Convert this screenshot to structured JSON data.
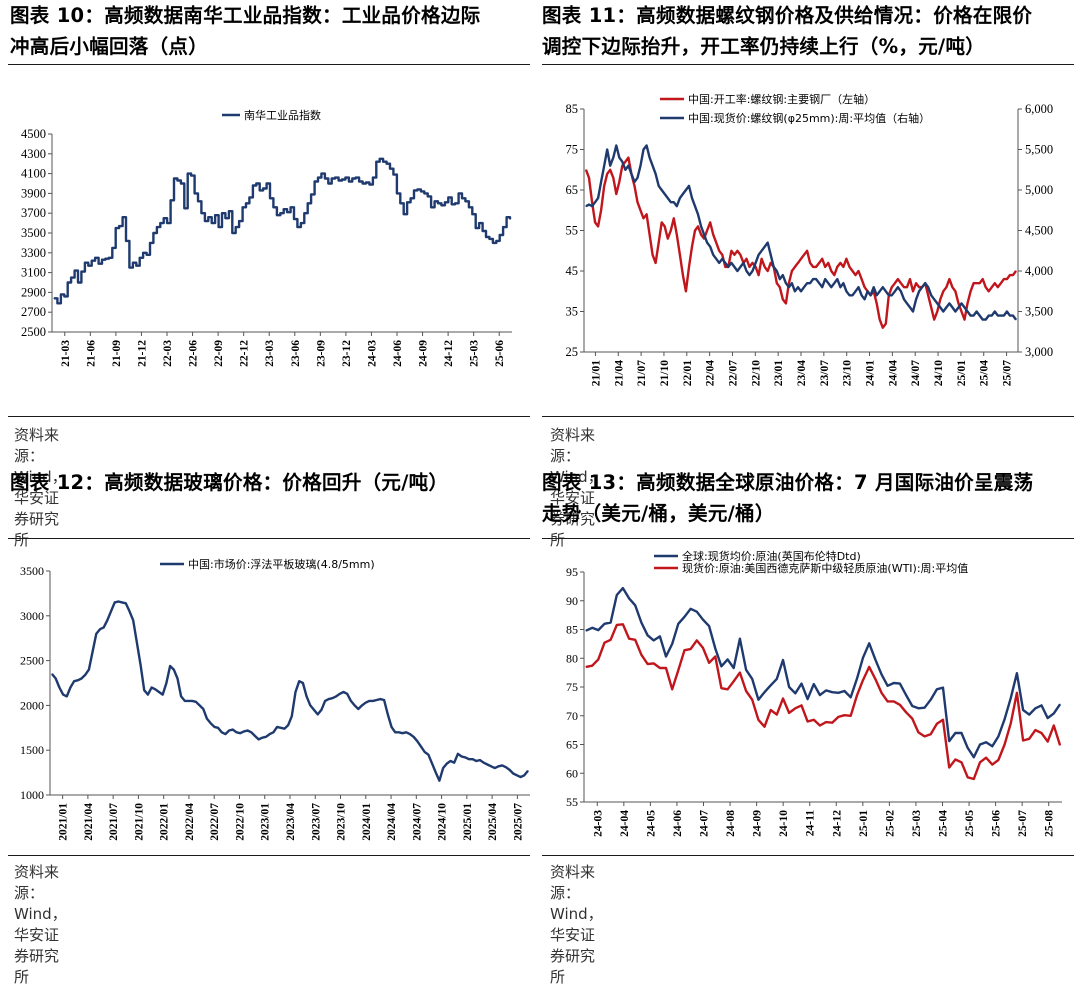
{
  "colors": {
    "navy": "#1f3a6e",
    "red": "#c0161c"
  },
  "panels": [
    {
      "id": "p10",
      "title_lines": [
        "图表 10：高频数据南华工业品指数：工业品价格边际",
        "冲高后小幅回落（点）"
      ],
      "source": "资料来源：Wind，华安证券研究所"
    },
    {
      "id": "p11",
      "title_lines": [
        "图表 11：高频数据螺纹钢价格及供给情况：价格在限价",
        "调控下边际抬升，开工率仍持续上行（%，元/吨）"
      ],
      "source": "资料来源：Wind，华安证券研究所"
    },
    {
      "id": "p12",
      "title_lines": [
        "图表 12：高频数据玻璃价格：价格回升（元/吨）"
      ],
      "source": "资料来源：Wind，华安证券研究所"
    },
    {
      "id": "p13",
      "title_lines": [
        "图表 13：高频数据全球原油价格：7 月国际油价呈震荡",
        "走势（美元/桶，美元/桶）"
      ],
      "source": "资料来源：Wind，华安证券研究所"
    }
  ],
  "chart_data": [
    {
      "id": "c10",
      "type": "line",
      "ylim": [
        2500,
        4500
      ],
      "yticks": [
        "2500",
        "2700",
        "2900",
        "3100",
        "3300",
        "3500",
        "3700",
        "3900",
        "4100",
        "4300",
        "4500"
      ],
      "xticks": [
        "21-03",
        "21-06",
        "21-09",
        "21-12",
        "22-03",
        "22-06",
        "22-09",
        "22-12",
        "23-03",
        "23-06",
        "23-09",
        "23-12",
        "24-03",
        "24-06",
        "24-09",
        "24-12",
        "25-03",
        "25-06"
      ],
      "series": [
        {
          "name": "南华工业品指数",
          "color": "#1f3a6e",
          "axis": "left",
          "values": [
            2840,
            2790,
            2880,
            2860,
            3000,
            3050,
            3120,
            3000,
            3110,
            3200,
            3170,
            3220,
            3250,
            3190,
            3230,
            3240,
            3250,
            3350,
            3550,
            3570,
            3660,
            3420,
            3150,
            3200,
            3170,
            3250,
            3300,
            3280,
            3400,
            3500,
            3560,
            3600,
            3650,
            3600,
            3830,
            4050,
            4030,
            4000,
            3750,
            4100,
            4080,
            3900,
            3820,
            3700,
            3620,
            3660,
            3600,
            3680,
            3560,
            3700,
            3650,
            3720,
            3500,
            3560,
            3620,
            3760,
            3800,
            3860,
            3980,
            4000,
            3930,
            3950,
            4000,
            3850,
            3760,
            3680,
            3700,
            3740,
            3710,
            3760,
            3640,
            3560,
            3600,
            3700,
            3800,
            3890,
            4020,
            4060,
            4100,
            4050,
            4000,
            4050,
            4060,
            4030,
            4040,
            4060,
            4020,
            4050,
            4060,
            4020,
            4000,
            4010,
            3990,
            4060,
            4220,
            4250,
            4220,
            4200,
            4150,
            4090,
            3900,
            3800,
            3690,
            3810,
            3850,
            3930,
            3940,
            3920,
            3900,
            3870,
            3760,
            3820,
            3800,
            3780,
            3810,
            3860,
            3790,
            3800,
            3900,
            3850,
            3820,
            3760,
            3690,
            3550,
            3600,
            3520,
            3460,
            3440,
            3400,
            3420,
            3480,
            3560,
            3660,
            3640
          ]
        }
      ]
    },
    {
      "id": "c11",
      "type": "line",
      "ylim": [
        25,
        85
      ],
      "y2lim": [
        3000,
        6000
      ],
      "yticks": [
        "25",
        "35",
        "45",
        "55",
        "65",
        "75",
        "85"
      ],
      "y2ticks": [
        "3,000",
        "3,500",
        "4,000",
        "4,500",
        "5,000",
        "5,500",
        "6,000"
      ],
      "xticks": [
        "21/01",
        "21/04",
        "21/07",
        "21/10",
        "22/01",
        "22/04",
        "22/07",
        "22/10",
        "23/01",
        "23/04",
        "23/07",
        "23/10",
        "24/01",
        "24/04",
        "24/07",
        "24/10",
        "25/01",
        "25/04",
        "25/07"
      ],
      "series": [
        {
          "name": "中国:开工率:螺纹钢:主要钢厂（左轴）",
          "color": "#c0161c",
          "axis": "left",
          "values": [
            70,
            68,
            62,
            57,
            56,
            60,
            66,
            69,
            70,
            68,
            64,
            67,
            71,
            72,
            73,
            69,
            66,
            62,
            60,
            58,
            59,
            54,
            49,
            47,
            52,
            57,
            56,
            53,
            55,
            58,
            54,
            49,
            44,
            40,
            46,
            51,
            55,
            56,
            54,
            53,
            55,
            57,
            54,
            52,
            50,
            49,
            46,
            46,
            50,
            49,
            50,
            49,
            47,
            48,
            46,
            47,
            46,
            44,
            48,
            46,
            45,
            47,
            46,
            42,
            41,
            38,
            37,
            42,
            45,
            46,
            47,
            48,
            49,
            50,
            47,
            46,
            46,
            47,
            48,
            46,
            47,
            45,
            44,
            46,
            47,
            46,
            48,
            46,
            45,
            44,
            45,
            43,
            41,
            40,
            39,
            40,
            37,
            33,
            31,
            32,
            39,
            41,
            42,
            43,
            42,
            41,
            41,
            43,
            40,
            42,
            41,
            41,
            42,
            39,
            36,
            33,
            35,
            38,
            40,
            41,
            43,
            41,
            40,
            37,
            35,
            33,
            37,
            40,
            42,
            42,
            42,
            43,
            41,
            40,
            41,
            42,
            41,
            42,
            43,
            43,
            44,
            44,
            45
          ]
        },
        {
          "name": "中国:现货价:螺纹钢(φ25mm):周:平均值（右轴）",
          "color": "#1f3a6e",
          "axis": "right",
          "values": [
            4800,
            4820,
            4800,
            4850,
            4900,
            5100,
            5300,
            5500,
            5300,
            5400,
            5550,
            5400,
            5350,
            5250,
            5300,
            5200,
            5100,
            5150,
            5300,
            5500,
            5550,
            5400,
            5300,
            5200,
            5050,
            5000,
            4950,
            4900,
            4850,
            4850,
            4800,
            4900,
            4950,
            5000,
            5050,
            4900,
            4800,
            4700,
            4550,
            4450,
            4350,
            4300,
            4200,
            4150,
            4100,
            4150,
            4100,
            4050,
            4100,
            4050,
            4000,
            4050,
            4100,
            4000,
            3950,
            4000,
            4100,
            4200,
            4250,
            4300,
            4350,
            4200,
            4050,
            4000,
            3900,
            3950,
            3850,
            3800,
            3850,
            3750,
            3800,
            3750,
            3800,
            3850,
            3850,
            3900,
            3900,
            3850,
            3800,
            3900,
            3850,
            3800,
            3850,
            3900,
            3800,
            3850,
            3750,
            3700,
            3700,
            3750,
            3800,
            3700,
            3650,
            3750,
            3700,
            3800,
            3700,
            3750,
            3800,
            3750,
            3700,
            3700,
            3750,
            3800,
            3750,
            3650,
            3600,
            3550,
            3500,
            3650,
            3750,
            3800,
            3850,
            3800,
            3700,
            3650,
            3600,
            3550,
            3500,
            3550,
            3600,
            3550,
            3500,
            3550,
            3600,
            3550,
            3500,
            3450,
            3450,
            3500,
            3450,
            3400,
            3400,
            3450,
            3450,
            3500,
            3450,
            3450,
            3450,
            3500,
            3450,
            3450,
            3400
          ]
        }
      ]
    },
    {
      "id": "c12",
      "type": "line",
      "ylim": [
        1000,
        3500
      ],
      "yticks": [
        "1000",
        "1500",
        "2000",
        "2500",
        "3000",
        "3500"
      ],
      "xticks": [
        "2021/01",
        "2021/04",
        "2021/07",
        "2021/10",
        "2022/01",
        "2022/04",
        "2022/07",
        "2022/10",
        "2023/01",
        "2023/04",
        "2023/07",
        "2023/10",
        "2024/01",
        "2024/04",
        "2024/07",
        "2024/10",
        "2025/01",
        "2025/04",
        "2025/07"
      ],
      "series": [
        {
          "name": "中国:市场价:浮法平板玻璃(4.8/5mm)",
          "color": "#1f3a6e",
          "axis": "left",
          "values": [
            2350,
            2300,
            2200,
            2120,
            2100,
            2200,
            2270,
            2280,
            2300,
            2340,
            2400,
            2600,
            2800,
            2850,
            2870,
            2950,
            3050,
            3150,
            3160,
            3150,
            3140,
            3050,
            2950,
            2700,
            2450,
            2170,
            2120,
            2200,
            2180,
            2150,
            2120,
            2250,
            2440,
            2400,
            2300,
            2100,
            2050,
            2050,
            2050,
            2040,
            2000,
            1960,
            1850,
            1800,
            1760,
            1750,
            1700,
            1680,
            1720,
            1730,
            1700,
            1690,
            1710,
            1720,
            1700,
            1660,
            1620,
            1640,
            1650,
            1680,
            1700,
            1760,
            1750,
            1740,
            1780,
            1880,
            2150,
            2270,
            2250,
            2100,
            2000,
            1950,
            1900,
            1950,
            2050,
            2070,
            2080,
            2100,
            2130,
            2150,
            2130,
            2050,
            2000,
            1960,
            2000,
            2030,
            2050,
            2050,
            2060,
            2070,
            2060,
            1900,
            1760,
            1700,
            1700,
            1690,
            1700,
            1680,
            1650,
            1600,
            1540,
            1480,
            1450,
            1350,
            1250,
            1160,
            1300,
            1350,
            1380,
            1360,
            1460,
            1430,
            1420,
            1400,
            1400,
            1380,
            1390,
            1360,
            1340,
            1320,
            1300,
            1320,
            1330,
            1310,
            1280,
            1240,
            1220,
            1200,
            1220,
            1270
          ]
        }
      ]
    },
    {
      "id": "c13",
      "type": "line",
      "ylim": [
        55,
        95
      ],
      "yticks": [
        "55",
        "60",
        "65",
        "70",
        "75",
        "80",
        "85",
        "90",
        "95"
      ],
      "xticks": [
        "24-03",
        "24-04",
        "24-05",
        "24-06",
        "24-07",
        "24-08",
        "24-09",
        "24-10",
        "24-11",
        "24-12",
        "25-01",
        "25-02",
        "25-03",
        "25-04",
        "25-05",
        "25-06",
        "25-07",
        "25-08"
      ],
      "series": [
        {
          "name": "全球:现货均价:原油(英国布伦特Dtd)",
          "color": "#1f3a6e",
          "axis": "left",
          "values": [
            84.8,
            85.3,
            84.9,
            86.0,
            86.2,
            91.0,
            92.2,
            90.4,
            89.2,
            86.2,
            84.0,
            83.1,
            83.8,
            80.3,
            82.5,
            86.0,
            87.2,
            88.6,
            88.1,
            86.7,
            85.6,
            81.7,
            78.6,
            79.8,
            78.3,
            83.4,
            78.0,
            76.4,
            72.8,
            74.1,
            75.3,
            76.4,
            79.7,
            75.0,
            73.9,
            75.6,
            72.9,
            75.5,
            73.6,
            74.4,
            74.1,
            74.0,
            74.3,
            73.2,
            76.4,
            80.1,
            82.6,
            79.8,
            77.2,
            75.2,
            75.7,
            75.6,
            73.6,
            71.7,
            71.3,
            71.4,
            72.8,
            74.6,
            74.9,
            65.6,
            67.0,
            67.0,
            64.4,
            62.8,
            65.0,
            65.4,
            64.7,
            66.4,
            69.4,
            73.1,
            77.4,
            71.0,
            70.2,
            71.3,
            71.8,
            69.6,
            70.4,
            72.0
          ]
        },
        {
          "name": "现货价:原油:美国西德克萨斯中级轻质原油(WTI):周:平均值",
          "color": "#c0161c",
          "axis": "left",
          "values": [
            78.5,
            78.7,
            79.8,
            82.7,
            83.2,
            85.8,
            85.9,
            83.4,
            83.2,
            80.6,
            79.0,
            79.1,
            78.3,
            78.3,
            74.6,
            77.9,
            81.4,
            81.6,
            83.1,
            81.8,
            79.2,
            80.3,
            74.8,
            74.6,
            76.0,
            77.5,
            74.3,
            72.8,
            69.3,
            68.1,
            71.0,
            70.2,
            73.0,
            70.5,
            71.3,
            71.8,
            69.0,
            69.3,
            68.3,
            68.9,
            68.8,
            69.8,
            70.1,
            70.0,
            73.5,
            76.2,
            78.5,
            76.4,
            74.0,
            72.5,
            72.5,
            71.9,
            70.6,
            69.5,
            67.1,
            66.4,
            66.8,
            68.6,
            69.3,
            61.0,
            62.4,
            61.9,
            59.3,
            59.0,
            61.9,
            62.7,
            61.5,
            62.3,
            65.0,
            68.7,
            74.0,
            65.7,
            66.0,
            67.5,
            67.0,
            65.5,
            68.3,
            64.9
          ]
        }
      ]
    }
  ]
}
